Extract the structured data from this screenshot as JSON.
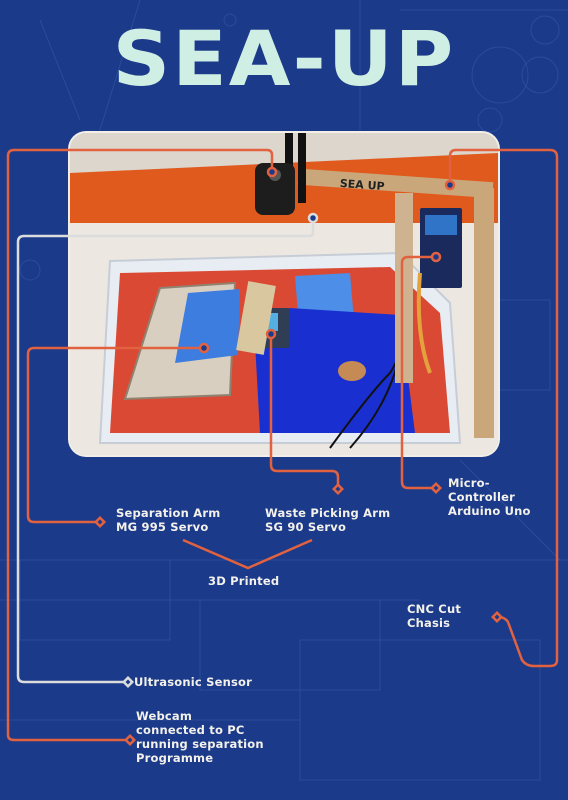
{
  "title": "SEA-UP",
  "labels": {
    "separation_arm": [
      "Separation Arm",
      "MG 995 Servo"
    ],
    "waste_arm": [
      "Waste Picking Arm",
      "SG 90 Servo"
    ],
    "printed": "3D Printed",
    "microcontroller": [
      "Micro-",
      "Controller",
      "Arduino Uno"
    ],
    "chasis": [
      "CNC Cut",
      "Chasis"
    ],
    "ultrasonic": "Ultrasonic Sensor",
    "webcam": [
      "Webcam",
      "connected to PC",
      "running separation",
      "Programme"
    ]
  },
  "photo_text": "SEA UP",
  "colors": {
    "background": "#1b3a8a",
    "title": "#cfeee4",
    "callout_orange": "#e2623f",
    "callout_white": "#dcdcdc"
  }
}
